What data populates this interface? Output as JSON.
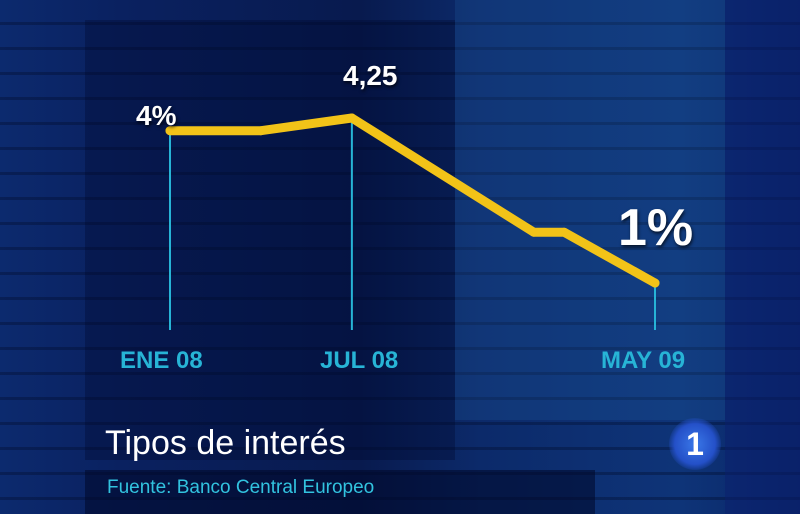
{
  "chart_data": {
    "type": "line",
    "title": "Tipos de interés",
    "source": "Fuente: Banco Central Europeo",
    "x": [
      "2008-01",
      "2008-04",
      "2008-07",
      "2009-01",
      "2009-02",
      "2009-05"
    ],
    "values": [
      4.0,
      4.0,
      4.25,
      2.0,
      2.0,
      1.0
    ],
    "tick_labels": [
      {
        "x": "2008-01",
        "label": "ENE 08"
      },
      {
        "x": "2008-07",
        "label": "JUL 08"
      },
      {
        "x": "2009-05",
        "label": "MAY 09"
      }
    ],
    "data_labels": [
      {
        "x": "2008-01",
        "label": "4%"
      },
      {
        "x": "2008-07",
        "label": "4,25"
      },
      {
        "x": "2009-05",
        "label": "1%"
      }
    ],
    "grid": false,
    "colors": {
      "line": "#f2c318",
      "ticks": "#27b4d6",
      "background": "#0a1f55"
    }
  },
  "logo": {
    "text": "1"
  }
}
